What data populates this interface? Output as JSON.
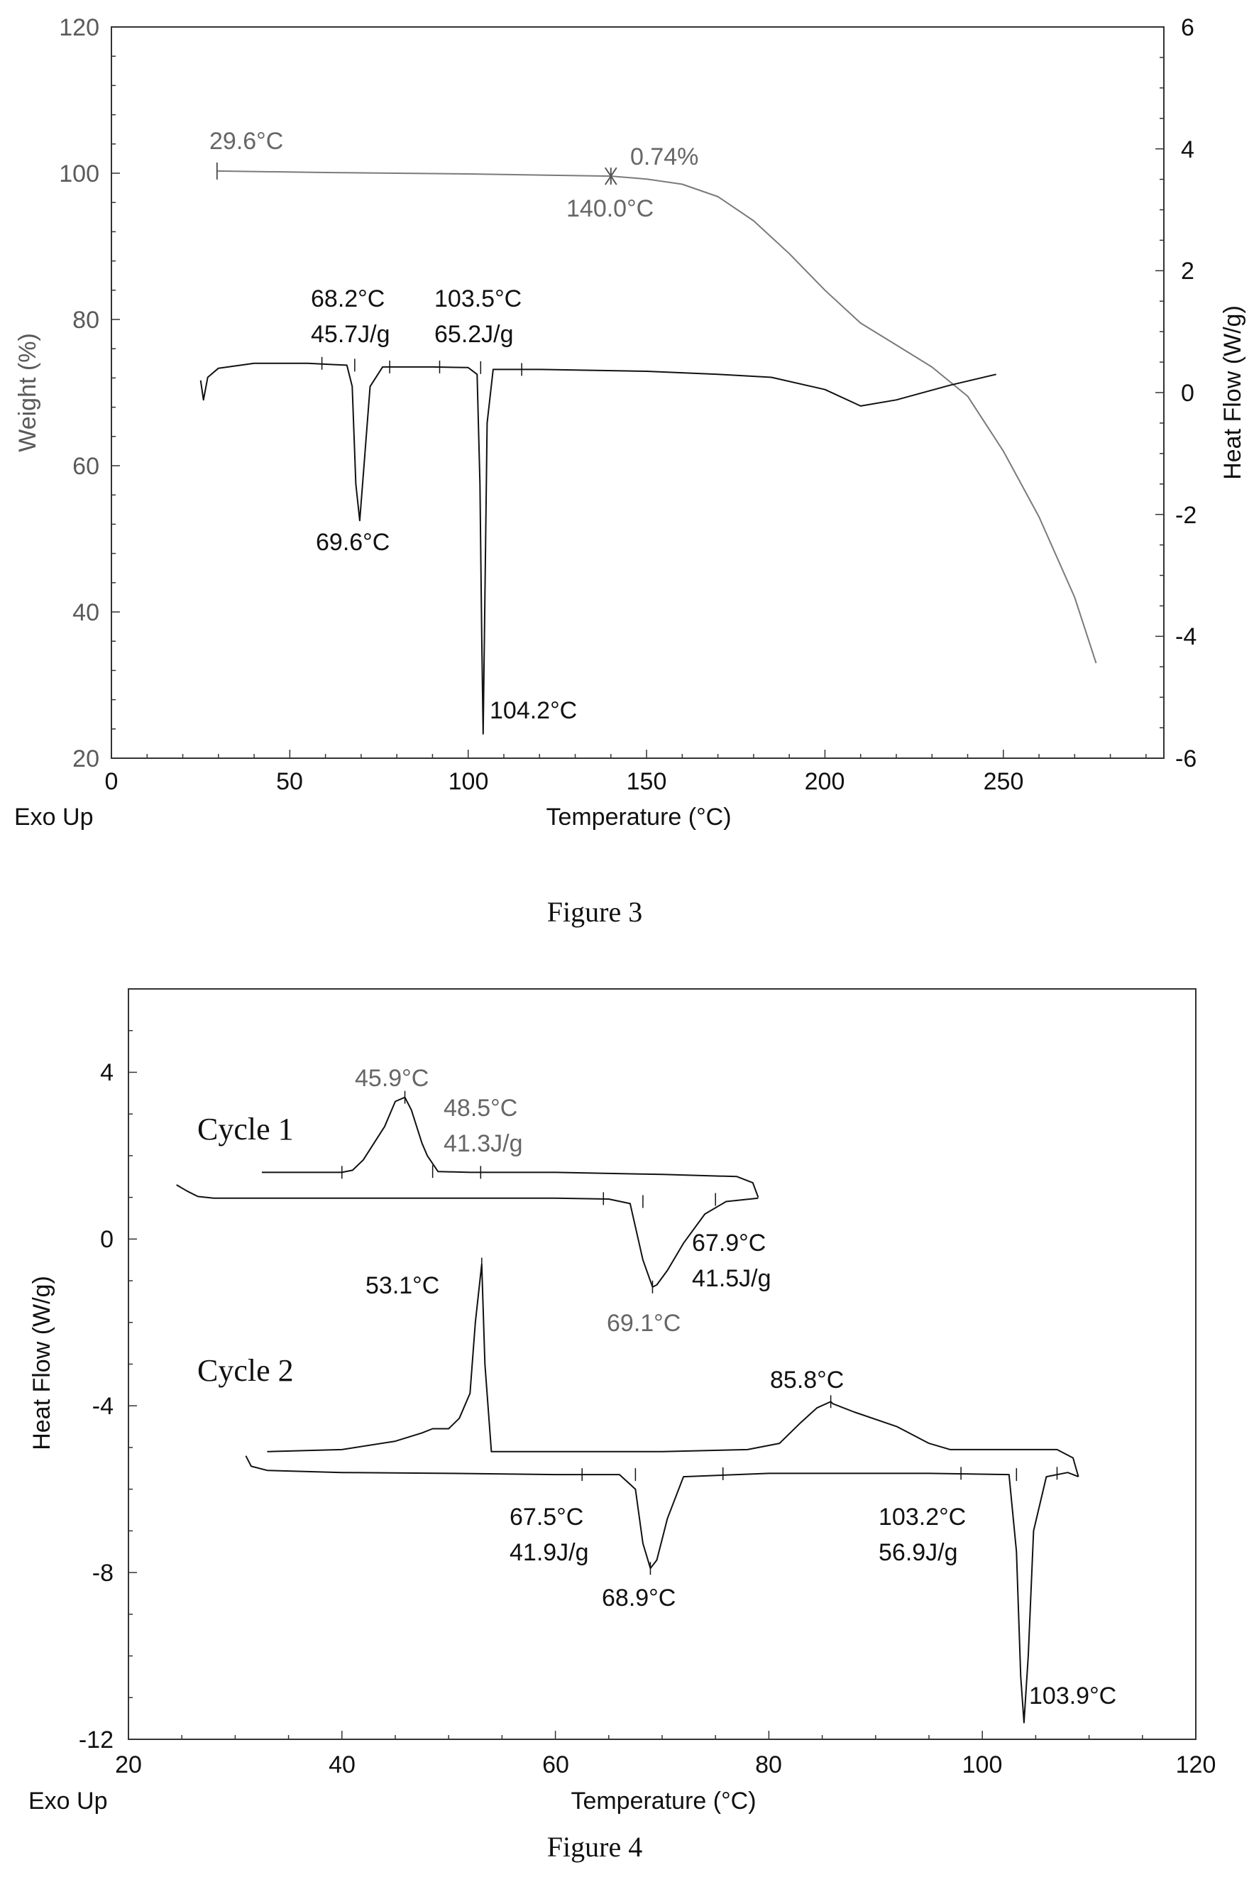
{
  "figures": {
    "fig3_caption": "Figure 3",
    "fig4_caption": "Figure 4"
  },
  "chart_data": [
    {
      "type": "line",
      "id": "figure3",
      "xlabel": "Temperature (°C)",
      "ylabel_left": "Weight (%)",
      "ylabel_right": "Heat Flow (W/g)",
      "corner_label": "Exo Up",
      "xlim": [
        0,
        295
      ],
      "ylim_left": [
        20,
        120
      ],
      "ylim_right": [
        -6,
        6
      ],
      "x_ticks": [
        "0",
        "50",
        "100",
        "150",
        "200",
        "250"
      ],
      "y_left_ticks": [
        "20",
        "40",
        "60",
        "80",
        "100",
        "120"
      ],
      "y_right_ticks": [
        "-6",
        "-4",
        "-2",
        "0",
        "2",
        "4",
        "6"
      ],
      "colors": {
        "weight": "#7a7a7a",
        "heatflow": "#111111"
      },
      "series": [
        {
          "axis": "left",
          "x": [
            29.6,
            60,
            100,
            140,
            150,
            160,
            170,
            180,
            190,
            200,
            210,
            220,
            230,
            240,
            250,
            260,
            270,
            276
          ],
          "y": [
            100.3,
            100.1,
            99.9,
            99.6,
            99.2,
            98.5,
            96.8,
            93.5,
            89,
            84,
            79.5,
            76.5,
            73.5,
            69.5,
            62,
            53,
            42,
            33
          ]
        },
        {
          "axis": "right",
          "x": [
            25,
            25.8,
            27,
            30,
            40,
            55,
            62,
            66,
            67.5,
            68.5,
            69.6,
            70.8,
            72.5,
            76,
            90,
            100,
            102.5,
            103.3,
            103.8,
            104.2,
            104.6,
            105.3,
            107,
            120,
            150,
            170,
            185,
            200,
            210,
            220,
            235,
            248
          ],
          "y": [
            0.2,
            -0.12,
            0.25,
            0.4,
            0.48,
            0.48,
            0.46,
            0.45,
            0.1,
            -1.5,
            -2.1,
            -1.2,
            0.1,
            0.42,
            0.42,
            0.41,
            0.3,
            -1.5,
            -4,
            -5.6,
            -3.8,
            -0.5,
            0.38,
            0.38,
            0.35,
            0.3,
            0.25,
            0.05,
            -0.22,
            -0.12,
            0.12,
            0.3
          ]
        }
      ],
      "annotations": [
        {
          "text": "29.6°C",
          "x": 29.6,
          "y": 100.3,
          "axis": "left"
        },
        {
          "text": "0.74%",
          "x": 140,
          "y": 99.6,
          "axis": "left"
        },
        {
          "text": "140.0°C",
          "x": 140,
          "y": 99.6,
          "axis": "left"
        },
        {
          "text": "68.2°C",
          "x": 68.2,
          "y": 0.45,
          "axis": "right"
        },
        {
          "text": "45.7J/g",
          "x": 68.2,
          "y": 0.45,
          "axis": "right"
        },
        {
          "text": "103.5°C",
          "x": 103.5,
          "y": 0.41,
          "axis": "right"
        },
        {
          "text": "65.2J/g",
          "x": 103.5,
          "y": 0.41,
          "axis": "right"
        },
        {
          "text": "69.6°C",
          "x": 69.6,
          "y": -2.1,
          "axis": "right"
        },
        {
          "text": "104.2°C",
          "x": 104.2,
          "y": -5.6,
          "axis": "right"
        }
      ]
    },
    {
      "type": "line",
      "id": "figure4",
      "xlabel": "Temperature (°C)",
      "ylabel": "Heat Flow (W/g)",
      "corner_label": "Exo Up",
      "xlim": [
        20,
        120
      ],
      "ylim": [
        -12,
        6
      ],
      "x_ticks": [
        "20",
        "40",
        "60",
        "80",
        "100",
        "120"
      ],
      "y_ticks": [
        "-12",
        "-8",
        "-4",
        "0",
        "4"
      ],
      "cycle_labels": [
        "Cycle 1",
        "Cycle 2"
      ],
      "series": [
        {
          "x": [
            79,
            78.5,
            77,
            70,
            60,
            52,
            49,
            48,
            47.5,
            46.5,
            45.9,
            45,
            44,
            42,
            41,
            40,
            32.5
          ],
          "y": [
            1.0,
            1.35,
            1.5,
            1.55,
            1.6,
            1.6,
            1.62,
            2.0,
            2.3,
            3.1,
            3.4,
            3.3,
            2.7,
            1.9,
            1.65,
            1.6,
            1.6
          ]
        },
        {
          "x": [
            24.5,
            25.5,
            26.5,
            28,
            35,
            50,
            60,
            65,
            67,
            68.2,
            69.1,
            69.5,
            70.5,
            72,
            74,
            76,
            79
          ],
          "y": [
            1.3,
            1.15,
            1.02,
            0.98,
            0.98,
            0.98,
            0.98,
            0.96,
            0.85,
            -0.5,
            -1.15,
            -1.1,
            -0.75,
            -0.1,
            0.6,
            0.9,
            0.98
          ]
        },
        {
          "x": [
            109,
            108.5,
            107,
            100,
            97,
            95,
            92,
            88,
            86,
            85.8,
            84.5,
            83,
            81,
            78,
            70,
            60,
            54,
            53.4,
            53.1,
            52.5,
            52,
            51,
            50,
            48.5,
            47.5,
            45,
            40,
            33
          ],
          "y": [
            -5.7,
            -5.25,
            -5.05,
            -5.05,
            -5.05,
            -4.9,
            -4.5,
            -4.15,
            -3.95,
            -3.9,
            -4.05,
            -4.4,
            -4.9,
            -5.05,
            -5.1,
            -5.1,
            -5.1,
            -3,
            -0.6,
            -2,
            -3.7,
            -4.3,
            -4.55,
            -4.55,
            -4.65,
            -4.85,
            -5.05,
            -5.1
          ]
        },
        {
          "x": [
            31,
            31.5,
            33,
            40,
            50,
            60,
            66,
            67.5,
            68.2,
            68.9,
            69.5,
            70.5,
            72,
            80,
            95,
            102.5,
            103.2,
            103.6,
            103.9,
            104.3,
            104.8,
            106,
            108,
            109
          ],
          "y": [
            -5.2,
            -5.45,
            -5.55,
            -5.6,
            -5.62,
            -5.65,
            -5.65,
            -6.0,
            -7.3,
            -7.9,
            -7.7,
            -6.7,
            -5.7,
            -5.62,
            -5.62,
            -5.65,
            -7.5,
            -10.5,
            -11.6,
            -10,
            -7,
            -5.7,
            -5.6,
            -5.7
          ]
        }
      ],
      "annotations": [
        {
          "text": "45.9°C",
          "x": 45.9,
          "y": 3.4
        },
        {
          "text": "48.5°C",
          "x": 48.5,
          "y": 2.2
        },
        {
          "text": "41.3J/g",
          "x": 48.5,
          "y": 2.2
        },
        {
          "text": "67.9°C",
          "x": 67.9,
          "y": 0.9
        },
        {
          "text": "41.5J/g",
          "x": 67.9,
          "y": 0.9
        },
        {
          "text": "69.1°C",
          "x": 69.1,
          "y": -1.15
        },
        {
          "text": "53.1°C",
          "x": 53.1,
          "y": -0.6
        },
        {
          "text": "85.8°C",
          "x": 85.8,
          "y": -3.9
        },
        {
          "text": "67.5°C",
          "x": 67.5,
          "y": -5.65
        },
        {
          "text": "41.9J/g",
          "x": 67.5,
          "y": -5.65
        },
        {
          "text": "68.9°C",
          "x": 68.9,
          "y": -7.9
        },
        {
          "text": "103.2°C",
          "x": 103.2,
          "y": -5.65
        },
        {
          "text": "56.9J/g",
          "x": 103.2,
          "y": -5.65
        },
        {
          "text": "103.9°C",
          "x": 103.9,
          "y": -11.6
        }
      ]
    }
  ]
}
